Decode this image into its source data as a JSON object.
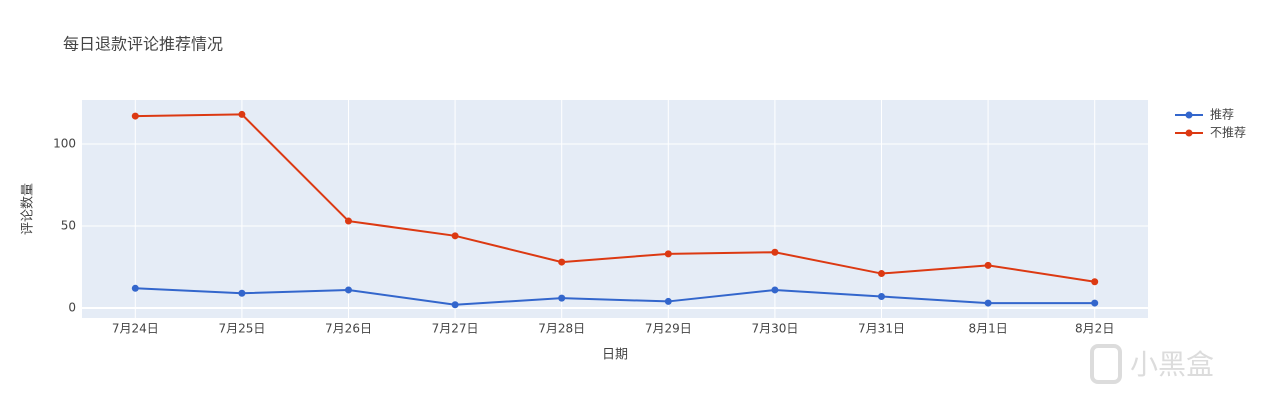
{
  "chart_data": {
    "type": "line",
    "title": "每日退款评论推荐情况",
    "x_label": "日期",
    "y_label": "评论数量",
    "categories": [
      "7月24日",
      "7月25日",
      "7月26日",
      "7月27日",
      "7月28日",
      "7月29日",
      "7月30日",
      "7月31日",
      "8月1日",
      "8月2日"
    ],
    "series": [
      {
        "name": "推荐",
        "color": "#3366cc",
        "values": [
          12,
          9,
          11,
          2,
          6,
          4,
          11,
          7,
          3,
          3
        ]
      },
      {
        "name": "不推荐",
        "color": "#dc3912",
        "values": [
          117,
          118,
          53,
          44,
          28,
          33,
          34,
          21,
          26,
          16
        ]
      }
    ],
    "ylim": [
      -6.1,
      126.8
    ],
    "yticks": [
      0,
      50,
      100
    ],
    "grid": true,
    "legend": "right",
    "watermark": "小黑盒"
  }
}
